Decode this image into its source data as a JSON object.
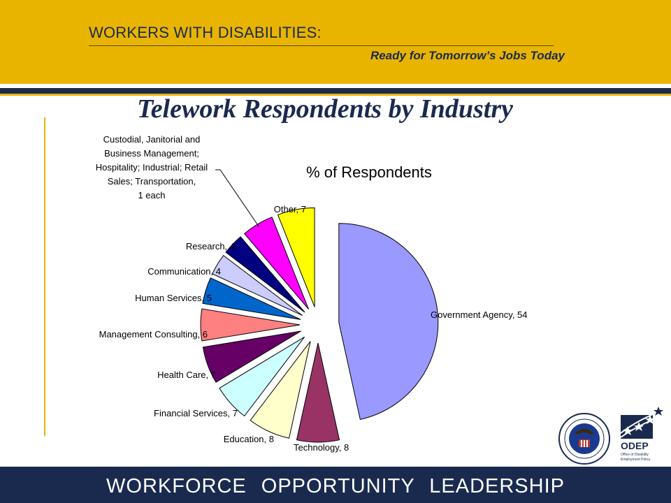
{
  "header": {
    "title": "WORKERS WITH DISABILITIES:",
    "subtitle": "Ready for Tomorrow’s Jobs Today"
  },
  "slide_title": "Telework Respondents by Industry",
  "footer": {
    "text": "WORKFORCE   OPPORTUNITY   LEADERSHIP"
  },
  "logos": {
    "seal_icon": "dol-seal-icon",
    "odep_icon": "odep-logo-icon",
    "odep_name": "ODEP",
    "odep_caption": "Office of Disability Employment Policy"
  },
  "colors": {
    "gold": "#E8B400",
    "navy": "#1a2a4f"
  },
  "chart_data": {
    "type": "pie",
    "title": "% of Respondents",
    "slices": [
      {
        "label": "Government Agency",
        "value": 54,
        "color": "#9999FF",
        "display": "Government Agency, 54"
      },
      {
        "label": "Technology",
        "value": 8,
        "color": "#993366",
        "display": "Technology, 8"
      },
      {
        "label": "Education",
        "value": 8,
        "color": "#FFFFCC",
        "display": "Education, 8"
      },
      {
        "label": "Financial Services",
        "value": 7,
        "color": "#CCFFFF",
        "display": "Financial Services, 7"
      },
      {
        "label": "Health Care",
        "value": 7,
        "color": "#660066",
        "display": "Health Care, 7"
      },
      {
        "label": "Management Consulting",
        "value": 6,
        "color": "#FF8080",
        "display": "Management Consulting, 6"
      },
      {
        "label": "Human Services",
        "value": 5,
        "color": "#0066CC",
        "display": "Human Services, 5"
      },
      {
        "label": "Communication",
        "value": 4,
        "color": "#CCCCFF",
        "display": "Communication, 4"
      },
      {
        "label": "Research",
        "value": 4,
        "color": "#000080",
        "display": "Research, 4"
      },
      {
        "label": "Custodial, Janitorial and Business Management; Hospitality; Industrial; Retail Sales; Transportation",
        "value": 6,
        "color": "#FF00FF",
        "display_lines": [
          "Custodial, Janitorial and",
          "Business Management;",
          "Hospitality; Industrial; Retail",
          "Sales; Transportation,",
          "1 each"
        ]
      },
      {
        "label": "Other",
        "value": 7,
        "color": "#FFFF00",
        "display": "Other, 7"
      }
    ]
  }
}
